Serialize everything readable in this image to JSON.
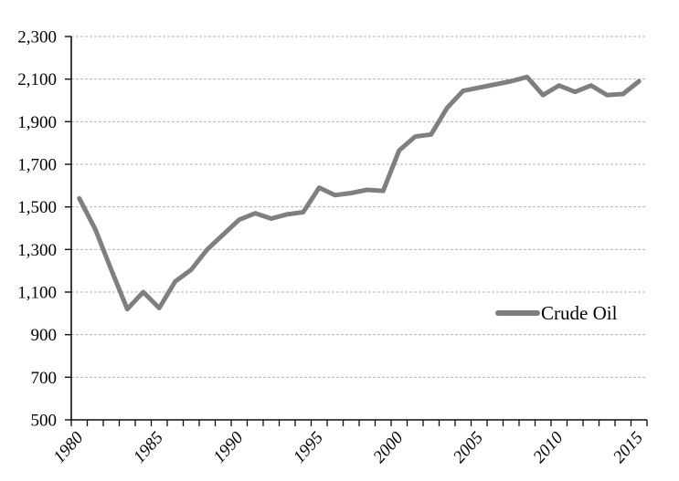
{
  "chart_data": {
    "type": "line",
    "title": "",
    "xlabel": "",
    "ylabel": "",
    "x": [
      1980,
      1981,
      1982,
      1983,
      1984,
      1985,
      1986,
      1987,
      1988,
      1989,
      1990,
      1991,
      1992,
      1993,
      1994,
      1995,
      1996,
      1997,
      1998,
      1999,
      2000,
      2001,
      2002,
      2003,
      2004,
      2005,
      2006,
      2007,
      2008,
      2009,
      2010,
      2011,
      2012,
      2013,
      2014,
      2015
    ],
    "series": [
      {
        "name": "Crude Oil",
        "values": [
          1540,
          1395,
          1205,
          1020,
          1100,
          1025,
          1150,
          1205,
          1300,
          1370,
          1440,
          1470,
          1445,
          1465,
          1475,
          1590,
          1555,
          1565,
          1580,
          1575,
          1765,
          1830,
          1840,
          1965,
          2045,
          2060,
          2075,
          2090,
          2110,
          2025,
          2070,
          2040,
          2070,
          2025,
          2030,
          2090
        ]
      }
    ],
    "ylim": [
      500,
      2300
    ],
    "ytick_interval": 200,
    "ytick_labels": [
      "500",
      "700",
      "900",
      "1,100",
      "1,300",
      "1,500",
      "1,700",
      "1,900",
      "2,100",
      "2,300"
    ],
    "xtick_years": [
      1980,
      1985,
      1990,
      1995,
      2000,
      2005,
      2010,
      2015
    ],
    "xtick_labels": [
      "1980",
      "1985",
      "1990",
      "1995",
      "2000",
      "2005",
      "2010",
      "2015"
    ],
    "grid": "horizontal-dashed",
    "legend_position": "inside-right"
  },
  "legend": {
    "label": "Crude Oil"
  },
  "colors": {
    "series_line": "#7f7f7f",
    "gridline": "#b3b3b3",
    "axis": "#0d0d0d",
    "text": "#000000",
    "background": "#ffffff"
  }
}
